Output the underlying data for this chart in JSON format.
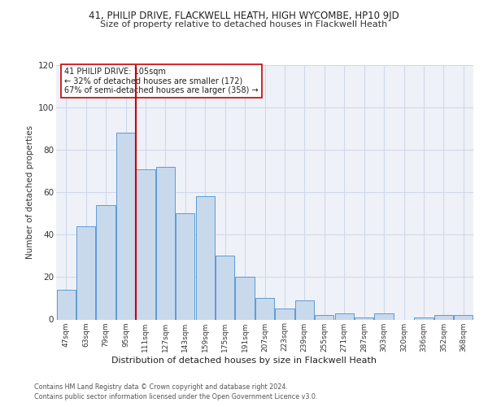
{
  "title1": "41, PHILIP DRIVE, FLACKWELL HEATH, HIGH WYCOMBE, HP10 9JD",
  "title2": "Size of property relative to detached houses in Flackwell Heath",
  "xlabel": "Distribution of detached houses by size in Flackwell Heath",
  "ylabel": "Number of detached properties",
  "bar_labels": [
    "47sqm",
    "63sqm",
    "79sqm",
    "95sqm",
    "111sqm",
    "127sqm",
    "143sqm",
    "159sqm",
    "175sqm",
    "191sqm",
    "207sqm",
    "223sqm",
    "239sqm",
    "255sqm",
    "271sqm",
    "287sqm",
    "303sqm",
    "320sqm",
    "336sqm",
    "352sqm",
    "368sqm"
  ],
  "bar_values": [
    14,
    44,
    54,
    88,
    71,
    72,
    50,
    58,
    30,
    20,
    10,
    5,
    9,
    2,
    3,
    1,
    3,
    0,
    1,
    2,
    2
  ],
  "bar_color": "#c9d9ec",
  "bar_edgecolor": "#5b9bd5",
  "vline_color": "#cc0000",
  "annotation_text": "41 PHILIP DRIVE: 105sqm\n← 32% of detached houses are smaller (172)\n67% of semi-detached houses are larger (358) →",
  "annotation_box_color": "#ffffff",
  "annotation_box_edgecolor": "#cc0000",
  "ylim": [
    0,
    120
  ],
  "yticks": [
    0,
    20,
    40,
    60,
    80,
    100,
    120
  ],
  "grid_color": "#d0d8e8",
  "background_color": "#eef2f8",
  "footer_line1": "Contains HM Land Registry data © Crown copyright and database right 2024.",
  "footer_line2": "Contains public sector information licensed under the Open Government Licence v3.0."
}
